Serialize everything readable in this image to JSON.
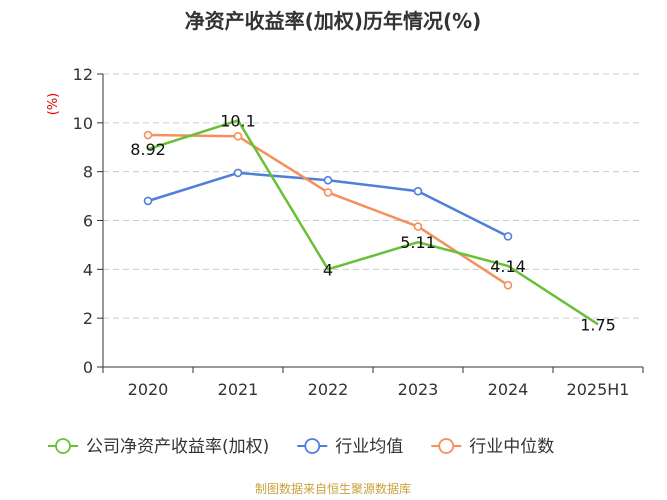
{
  "chart_data": {
    "type": "line",
    "title": "净资产收益率(加权)历年情况(%)",
    "unit_label": "(%)",
    "categories": [
      "2020",
      "2021",
      "2022",
      "2023",
      "2024",
      "2025H1"
    ],
    "ylim": [
      0,
      12
    ],
    "yticks": [
      0,
      2,
      4,
      6,
      8,
      10,
      12
    ],
    "grid": true,
    "legend_position": "bottom",
    "series": [
      {
        "name": "公司净资产收益率(加权)",
        "color": "#66c136",
        "values": [
          8.92,
          10.1,
          4,
          5.11,
          4.14,
          1.75
        ],
        "labels": [
          "8.92",
          "10.1",
          "4",
          "5.11",
          "4.14",
          "1.75"
        ],
        "show_markers": false
      },
      {
        "name": "行业均值",
        "color": "#4f7fd9",
        "values": [
          6.8,
          7.95,
          7.65,
          7.2,
          5.35,
          null
        ],
        "show_markers": true
      },
      {
        "name": "行业中位数",
        "color": "#f5905c",
        "values": [
          9.5,
          9.45,
          7.15,
          5.75,
          3.35,
          null
        ],
        "show_markers": true
      }
    ],
    "source": "制图数据来自恒生聚源数据库"
  }
}
